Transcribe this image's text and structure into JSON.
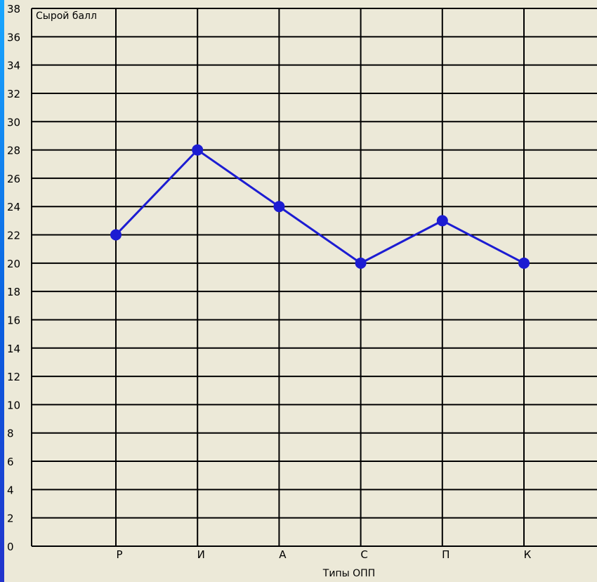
{
  "chart_data": {
    "type": "line",
    "y_axis_label": "Сырой балл",
    "x_axis_label": "Типы ОПП",
    "categories": [
      "Р",
      "И",
      "А",
      "С",
      "П",
      "К"
    ],
    "values": [
      22,
      28,
      24,
      20,
      23,
      20
    ],
    "y_ticks": [
      0,
      2,
      4,
      6,
      8,
      10,
      12,
      14,
      16,
      18,
      20,
      22,
      24,
      26,
      28,
      30,
      32,
      34,
      36,
      38
    ],
    "ylim": [
      0,
      38
    ],
    "grid": true,
    "colors": {
      "series": "#1c1cd2",
      "grid": "#000000",
      "background": "#ece9d8"
    }
  }
}
